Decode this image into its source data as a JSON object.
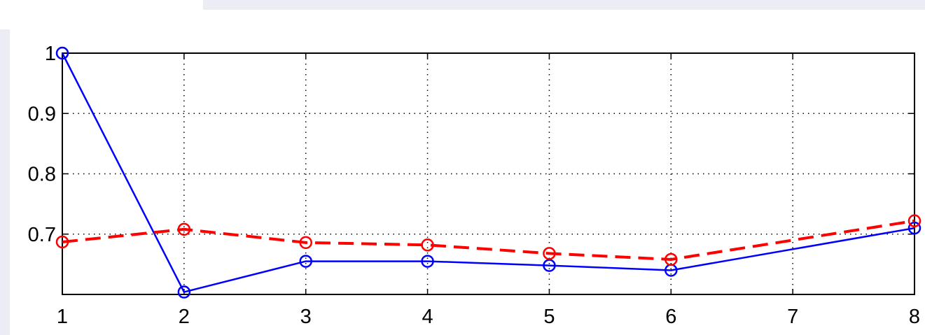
{
  "chart_data": {
    "type": "line",
    "title": "",
    "xlabel": "",
    "ylabel": "",
    "xlim": [
      1,
      8
    ],
    "ylim": [
      0.6,
      1.0
    ],
    "x_ticks": [
      1,
      2,
      3,
      4,
      5,
      6,
      7,
      8
    ],
    "x_tick_labels": [
      "1",
      "2",
      "3",
      "4",
      "5",
      "6",
      "7",
      "8"
    ],
    "y_ticks": [
      0.7,
      0.8,
      0.9,
      1.0
    ],
    "y_tick_labels": [
      "0.7",
      "0.8",
      "0.9",
      "1"
    ],
    "grid": true,
    "series": [
      {
        "style": "solid",
        "marker": "circle",
        "color": "#0000ff",
        "x": [
          1,
          2,
          3,
          4,
          5,
          6,
          8
        ],
        "y": [
          1.0,
          0.604,
          0.655,
          0.655,
          0.648,
          0.64,
          0.71
        ]
      },
      {
        "style": "dashed",
        "marker": "circle",
        "color": "#ff0000",
        "x": [
          1,
          2,
          3,
          4,
          5,
          6,
          8
        ],
        "y": [
          0.687,
          0.708,
          0.686,
          0.682,
          0.668,
          0.658,
          0.722
        ]
      }
    ]
  }
}
